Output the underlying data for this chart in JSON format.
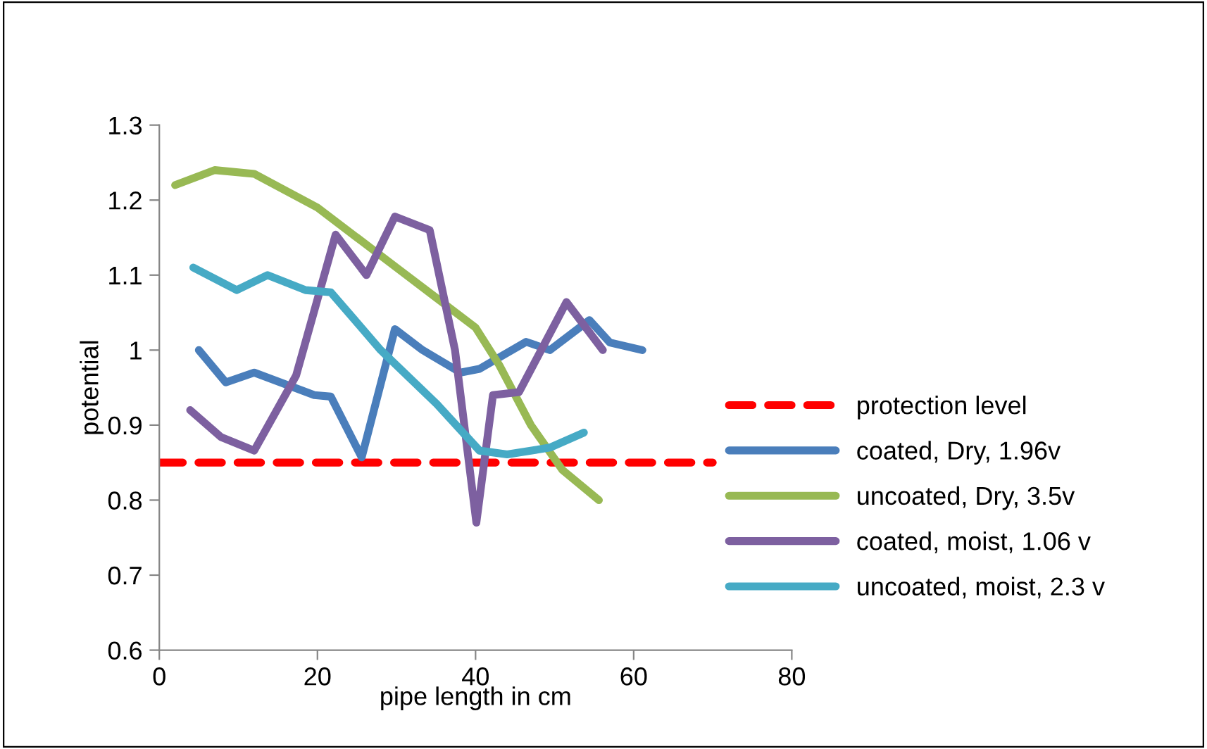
{
  "chart_data": {
    "type": "line",
    "xlabel": "pipe length in cm",
    "ylabel": "potential",
    "xlim": [
      0,
      80
    ],
    "xticks": [
      0,
      20,
      40,
      60,
      80
    ],
    "ylim": [
      0.6,
      1.3
    ],
    "yticks": [
      0.6,
      0.7,
      0.8,
      0.9,
      1,
      1.1,
      1.2,
      1.3
    ],
    "grid": false,
    "legend": "right",
    "marker": "none",
    "series": [
      {
        "name": "protection level",
        "color": "#ff0000",
        "line_style": "dashed",
        "x": [
          0,
          70
        ],
        "values": [
          0.85,
          0.85
        ]
      },
      {
        "name": "coated, Dry, 1.96v",
        "color": "#4a7ebb",
        "x": [
          5,
          8.4,
          12,
          19.6,
          21.7,
          25.6,
          29.8,
          33.3,
          38.1,
          40.5,
          46.4,
          49.4,
          54.4,
          57,
          61.1
        ],
        "values": [
          1.0,
          0.957,
          0.97,
          0.94,
          0.938,
          0.857,
          1.028,
          1.0,
          0.97,
          0.975,
          1.011,
          1.0,
          1.04,
          1.01,
          1.0
        ]
      },
      {
        "name": "uncoated, Dry, 3.5v",
        "color": "#98b954",
        "x": [
          2,
          7,
          12,
          20,
          25,
          30,
          35,
          40,
          43,
          47,
          51,
          55.6
        ],
        "values": [
          1.22,
          1.24,
          1.235,
          1.19,
          1.15,
          1.11,
          1.07,
          1.03,
          0.98,
          0.9,
          0.84,
          0.8
        ]
      },
      {
        "name": "coated, moist, 1.06 v",
        "color": "#7d60a0",
        "x": [
          3.9,
          7.8,
          12,
          17.3,
          22.3,
          26.2,
          29.8,
          34.2,
          37.4,
          40.1,
          42.2,
          45.5,
          51.5,
          56.1
        ],
        "values": [
          0.92,
          0.884,
          0.866,
          0.966,
          1.154,
          1.1,
          1.178,
          1.16,
          1.0,
          0.77,
          0.94,
          0.944,
          1.064,
          1.0
        ]
      },
      {
        "name": "uncoated, moist, 2.3 v",
        "color": "#46aac5",
        "x": [
          4.3,
          9.8,
          13.7,
          18.5,
          21.7,
          28,
          35.1,
          40.5,
          44,
          49.4,
          53.7
        ],
        "values": [
          1.11,
          1.08,
          1.1,
          1.08,
          1.077,
          1.0,
          0.928,
          0.866,
          0.861,
          0.87,
          0.89
        ]
      }
    ]
  }
}
